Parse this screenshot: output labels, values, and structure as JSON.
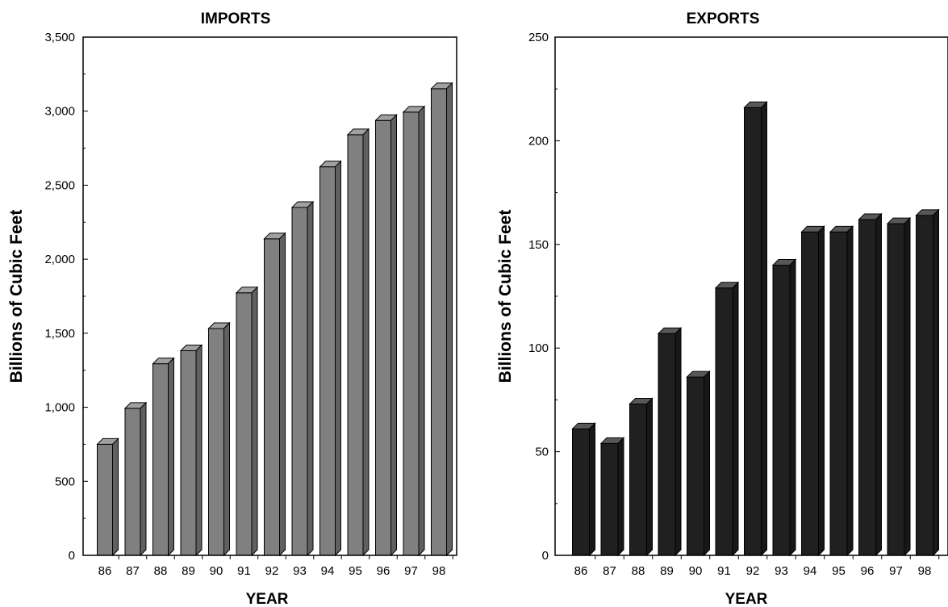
{
  "chart_data": [
    {
      "type": "bar",
      "title": "IMPORTS",
      "xlabel": "YEAR",
      "ylabel": "Billions of Cubic Feet",
      "categories": [
        "86",
        "87",
        "88",
        "89",
        "90",
        "91",
        "92",
        "93",
        "94",
        "95",
        "96",
        "97",
        "98"
      ],
      "values": [
        750,
        993,
        1294,
        1382,
        1532,
        1773,
        2138,
        2350,
        2624,
        2841,
        2937,
        2994,
        3152
      ],
      "ylim": [
        0,
        3500
      ],
      "yticks": [
        0,
        500,
        1000,
        1500,
        2000,
        2500,
        3000,
        3500
      ],
      "ytick_labels": [
        "0",
        "500",
        "1,000",
        "1,500",
        "2,000",
        "2,500",
        "3,000",
        "3,500"
      ],
      "bar_color": "#808080",
      "grid": false
    },
    {
      "type": "bar",
      "title": "EXPORTS",
      "xlabel": "YEAR",
      "ylabel": "Billions of Cubic Feet",
      "categories": [
        "86",
        "87",
        "88",
        "89",
        "90",
        "91",
        "92",
        "93",
        "94",
        "95",
        "96",
        "97",
        "98"
      ],
      "values": [
        61,
        54,
        73,
        107,
        86,
        129,
        216,
        140,
        156,
        156,
        162,
        160,
        164
      ],
      "ylim": [
        0,
        250
      ],
      "yticks": [
        0,
        50,
        100,
        150,
        200,
        250
      ],
      "ytick_labels": [
        "0",
        "50",
        "100",
        "150",
        "200",
        "250"
      ],
      "bar_color": "#202020",
      "grid": false
    }
  ]
}
